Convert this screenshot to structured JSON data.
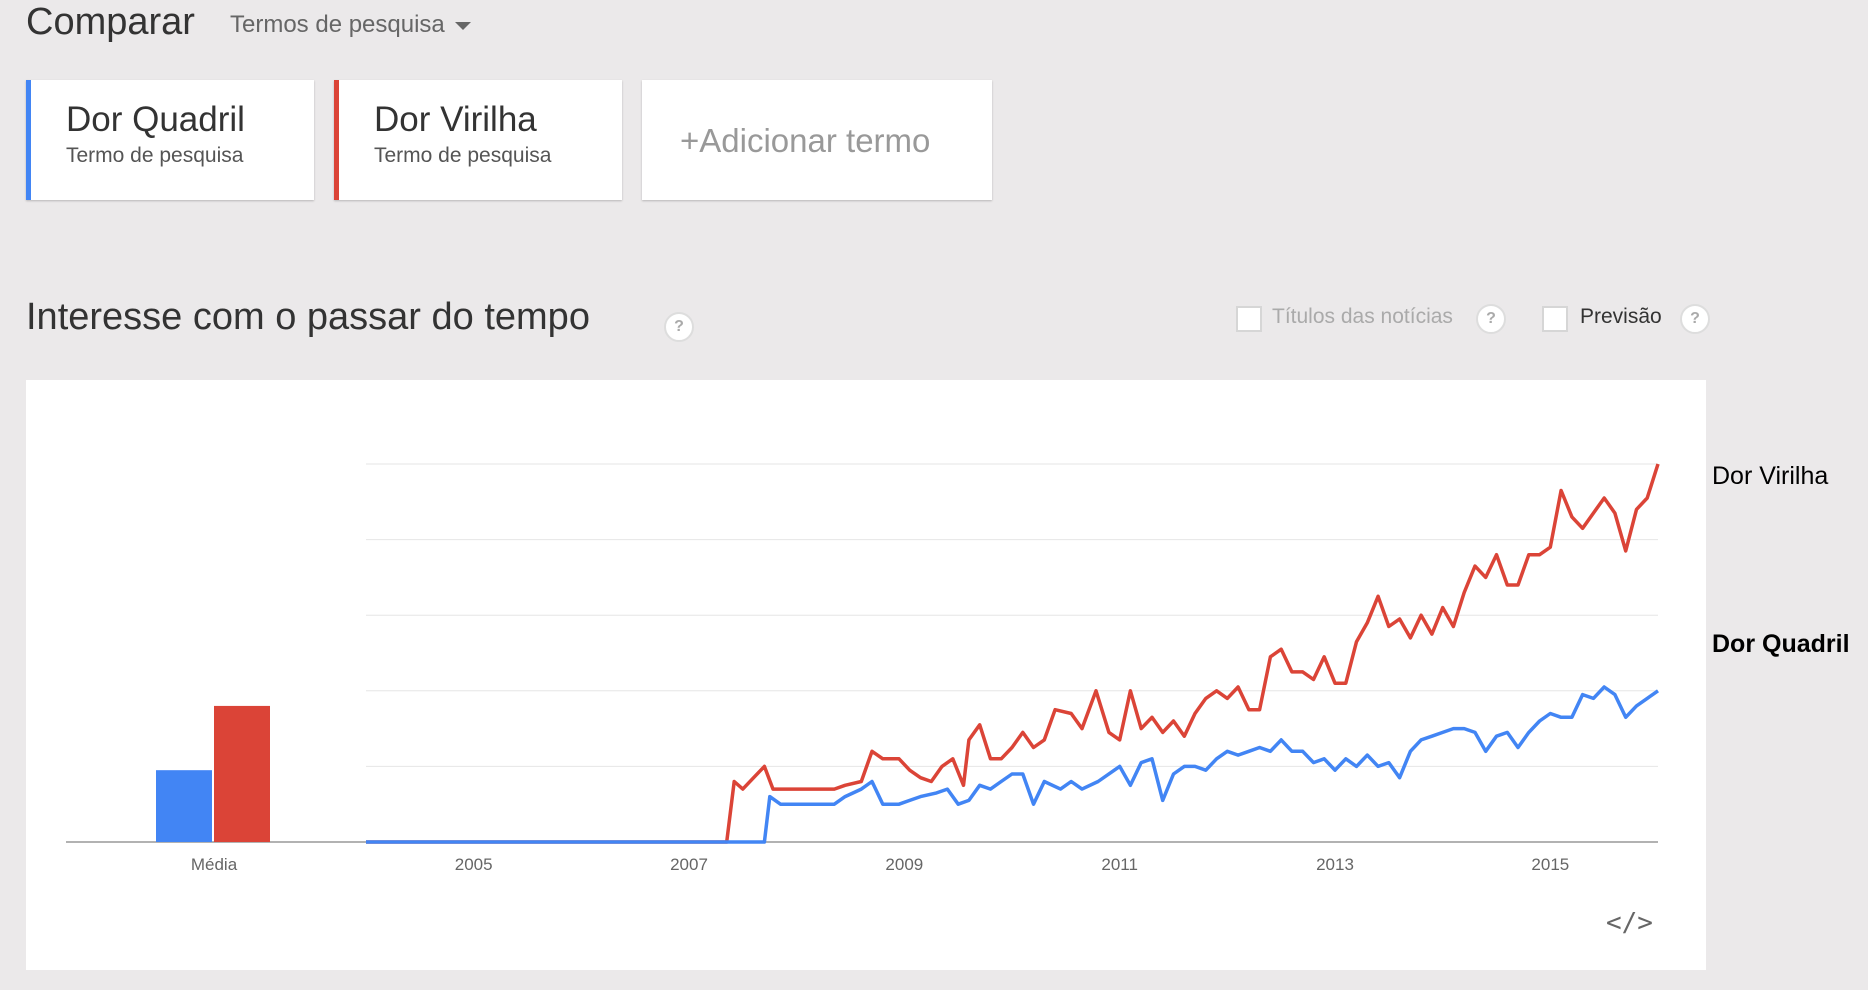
{
  "header": {
    "title": "Comparar",
    "dropdown_label": "Termos de pesquisa"
  },
  "terms": [
    {
      "name": "Dor Quadril",
      "sub": "Termo de pesquisa",
      "color": "#4285f4"
    },
    {
      "name": "Dor Virilha",
      "sub": "Termo de pesquisa",
      "color": "#db4437"
    }
  ],
  "add_term": {
    "plus": "+",
    "label": "Adicionar termo"
  },
  "section": {
    "title": "Interesse com o passar do tempo",
    "help": "?",
    "options": [
      {
        "label": "Títulos das notícias",
        "checked": false,
        "help": "?"
      },
      {
        "label": "Previsão",
        "checked": false,
        "help": "?"
      }
    ]
  },
  "embed": {
    "icon": "embed-code-icon",
    "glyph": "</>"
  },
  "chart_data": {
    "type": "line",
    "ylim": [
      0,
      100
    ],
    "grid": true,
    "x_tick_labels": [
      "2005",
      "2007",
      "2009",
      "2011",
      "2013",
      "2015"
    ],
    "x_ticks": [
      2005,
      2007,
      2009,
      2011,
      2013,
      2015
    ],
    "xlim": [
      2004.0,
      2015.2
    ],
    "average": {
      "label": "Média",
      "values": [
        {
          "name": "Dor Quadril",
          "value": 19
        },
        {
          "name": "Dor Virilha",
          "value": 36
        }
      ]
    },
    "series": [
      {
        "name": "Dor Virilha",
        "color": "#db4437",
        "points": [
          [
            2004.0,
            0
          ],
          [
            2007.35,
            0
          ],
          [
            2007.42,
            16
          ],
          [
            2007.5,
            14
          ],
          [
            2007.6,
            17
          ],
          [
            2007.7,
            20
          ],
          [
            2007.78,
            14
          ],
          [
            2008.0,
            14
          ],
          [
            2008.2,
            14
          ],
          [
            2008.35,
            14
          ],
          [
            2008.45,
            15
          ],
          [
            2008.6,
            16
          ],
          [
            2008.7,
            24
          ],
          [
            2008.8,
            22
          ],
          [
            2008.95,
            22
          ],
          [
            2009.05,
            19
          ],
          [
            2009.15,
            17
          ],
          [
            2009.25,
            16
          ],
          [
            2009.35,
            20
          ],
          [
            2009.45,
            22
          ],
          [
            2009.55,
            15
          ],
          [
            2009.6,
            27
          ],
          [
            2009.7,
            31
          ],
          [
            2009.8,
            22
          ],
          [
            2009.9,
            22
          ],
          [
            2010.0,
            25
          ],
          [
            2010.1,
            29
          ],
          [
            2010.2,
            25
          ],
          [
            2010.3,
            27
          ],
          [
            2010.4,
            35
          ],
          [
            2010.55,
            34
          ],
          [
            2010.65,
            30
          ],
          [
            2010.78,
            40
          ],
          [
            2010.9,
            29
          ],
          [
            2011.0,
            27
          ],
          [
            2011.1,
            40
          ],
          [
            2011.2,
            30
          ],
          [
            2011.3,
            33
          ],
          [
            2011.4,
            29
          ],
          [
            2011.5,
            32
          ],
          [
            2011.6,
            28
          ],
          [
            2011.7,
            34
          ],
          [
            2011.8,
            38
          ],
          [
            2011.9,
            40
          ],
          [
            2012.0,
            38
          ],
          [
            2012.1,
            41
          ],
          [
            2012.2,
            35
          ],
          [
            2012.3,
            35
          ],
          [
            2012.4,
            49
          ],
          [
            2012.5,
            51
          ],
          [
            2012.6,
            45
          ],
          [
            2012.7,
            45
          ],
          [
            2012.8,
            43
          ],
          [
            2012.9,
            49
          ],
          [
            2013.0,
            42
          ],
          [
            2013.1,
            42
          ],
          [
            2013.2,
            53
          ],
          [
            2013.3,
            58
          ],
          [
            2013.4,
            65
          ],
          [
            2013.5,
            57
          ],
          [
            2013.6,
            59
          ],
          [
            2013.7,
            54
          ],
          [
            2013.8,
            60
          ],
          [
            2013.9,
            55
          ],
          [
            2014.0,
            62
          ],
          [
            2014.1,
            57
          ],
          [
            2014.2,
            66
          ],
          [
            2014.3,
            73
          ],
          [
            2014.4,
            70
          ],
          [
            2014.5,
            76
          ],
          [
            2014.6,
            68
          ],
          [
            2014.7,
            68
          ],
          [
            2014.8,
            76
          ],
          [
            2014.9,
            76
          ],
          [
            2015.0,
            78
          ],
          [
            2015.1,
            93
          ],
          [
            2015.2,
            86
          ],
          [
            2015.3,
            83
          ],
          [
            2015.4,
            87
          ],
          [
            2015.5,
            91
          ],
          [
            2015.6,
            87
          ],
          [
            2015.7,
            77
          ],
          [
            2015.8,
            88
          ],
          [
            2015.9,
            91
          ],
          [
            2016.0,
            100
          ]
        ]
      },
      {
        "name": "Dor Quadril",
        "color": "#4285f4",
        "points": [
          [
            2004.0,
            0
          ],
          [
            2007.7,
            0
          ],
          [
            2007.75,
            12
          ],
          [
            2007.85,
            10
          ],
          [
            2008.0,
            10
          ],
          [
            2008.2,
            10
          ],
          [
            2008.35,
            10
          ],
          [
            2008.45,
            12
          ],
          [
            2008.6,
            14
          ],
          [
            2008.7,
            16
          ],
          [
            2008.8,
            10
          ],
          [
            2008.95,
            10
          ],
          [
            2009.05,
            11
          ],
          [
            2009.15,
            12
          ],
          [
            2009.3,
            13
          ],
          [
            2009.4,
            14
          ],
          [
            2009.5,
            10
          ],
          [
            2009.6,
            11
          ],
          [
            2009.7,
            15
          ],
          [
            2009.8,
            14
          ],
          [
            2009.9,
            16
          ],
          [
            2010.0,
            18
          ],
          [
            2010.1,
            18
          ],
          [
            2010.2,
            10
          ],
          [
            2010.3,
            16
          ],
          [
            2010.45,
            14
          ],
          [
            2010.55,
            16
          ],
          [
            2010.65,
            14
          ],
          [
            2010.8,
            16
          ],
          [
            2010.95,
            19
          ],
          [
            2011.0,
            20
          ],
          [
            2011.1,
            15
          ],
          [
            2011.2,
            21
          ],
          [
            2011.3,
            22
          ],
          [
            2011.4,
            11
          ],
          [
            2011.5,
            18
          ],
          [
            2011.6,
            20
          ],
          [
            2011.7,
            20
          ],
          [
            2011.8,
            19
          ],
          [
            2011.9,
            22
          ],
          [
            2012.0,
            24
          ],
          [
            2012.1,
            23
          ],
          [
            2012.2,
            24
          ],
          [
            2012.3,
            25
          ],
          [
            2012.4,
            24
          ],
          [
            2012.5,
            27
          ],
          [
            2012.6,
            24
          ],
          [
            2012.7,
            24
          ],
          [
            2012.8,
            21
          ],
          [
            2012.9,
            22
          ],
          [
            2013.0,
            19
          ],
          [
            2013.1,
            22
          ],
          [
            2013.2,
            20
          ],
          [
            2013.3,
            23
          ],
          [
            2013.4,
            20
          ],
          [
            2013.5,
            21
          ],
          [
            2013.6,
            17
          ],
          [
            2013.7,
            24
          ],
          [
            2013.8,
            27
          ],
          [
            2013.9,
            28
          ],
          [
            2014.0,
            29
          ],
          [
            2014.1,
            30
          ],
          [
            2014.2,
            30
          ],
          [
            2014.3,
            29
          ],
          [
            2014.4,
            24
          ],
          [
            2014.5,
            28
          ],
          [
            2014.6,
            29
          ],
          [
            2014.7,
            25
          ],
          [
            2014.8,
            29
          ],
          [
            2014.9,
            32
          ],
          [
            2015.0,
            34
          ],
          [
            2015.1,
            33
          ],
          [
            2015.2,
            33
          ],
          [
            2015.3,
            39
          ],
          [
            2015.4,
            38
          ],
          [
            2015.5,
            41
          ],
          [
            2015.6,
            39
          ],
          [
            2015.7,
            33
          ],
          [
            2015.8,
            36
          ],
          [
            2015.9,
            38
          ],
          [
            2016.0,
            40
          ]
        ]
      }
    ]
  }
}
